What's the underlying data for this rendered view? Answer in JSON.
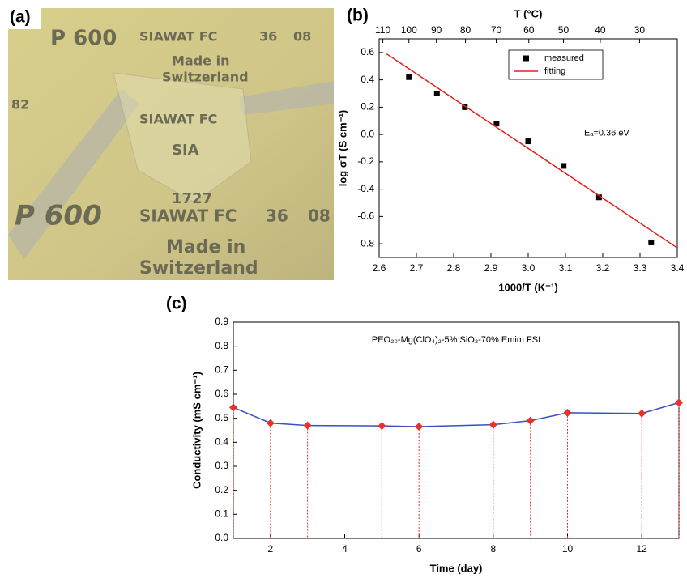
{
  "panels": {
    "a": "(a)",
    "b": "(b)",
    "c": "(c)"
  },
  "photo": {
    "texts": [
      "P 600",
      "SIAWAT FC",
      "36",
      "08",
      "1727",
      "Made in",
      "Switzerland",
      "SIA",
      "82"
    ]
  },
  "chart_data": [
    {
      "type": "scatter",
      "x_label": "1000/T (K⁻¹)",
      "y_label": "log σT (S cm⁻¹)",
      "x2_label": "T (°C)",
      "annotation": "Eₐ=0.36 eV",
      "xlim": [
        2.6,
        3.4
      ],
      "xticks": [
        2.6,
        2.7,
        2.8,
        2.9,
        {
          "value": 3.0,
          "label": "3.0"
        },
        3.1,
        3.2,
        3.3,
        3.4
      ],
      "ylim": [
        -0.9,
        0.7
      ],
      "yticks": [
        -0.8,
        -0.6,
        -0.4,
        -0.2,
        {
          "value": 0,
          "label": "0.0"
        },
        0.2,
        0.4,
        0.6
      ],
      "x2ticks": [
        110,
        100,
        90,
        80,
        70,
        60,
        50,
        40,
        30
      ],
      "legend": "top-right",
      "series": [
        {
          "name": "measured",
          "type": "scatter",
          "color": "#000000",
          "x": [
            2.68,
            2.755,
            2.83,
            2.915,
            3.0,
            3.095,
            3.19,
            3.33
          ],
          "values": [
            0.42,
            0.3,
            0.2,
            0.08,
            -0.05,
            -0.23,
            -0.46,
            -0.79
          ]
        },
        {
          "name": "fitting",
          "type": "line",
          "color": "#e0201b",
          "x": [
            2.62,
            3.4
          ],
          "values": [
            0.59,
            -0.83
          ]
        }
      ]
    },
    {
      "type": "line",
      "x_label": "Time (day)",
      "y_label": "Conductivity (mS cm⁻¹)",
      "annotation": "PEO₂₀-Mg(ClO₄)₂-5% SiO₂-70% Emim FSI",
      "xlim": [
        1,
        13
      ],
      "xticks": [
        2,
        4,
        6,
        8,
        10,
        12
      ],
      "ylim": [
        0,
        0.9
      ],
      "yticks": [
        {
          "value": 0,
          "label": "0.0"
        },
        0.1,
        0.2,
        0.3,
        0.4,
        0.5,
        0.6,
        0.7,
        0.8,
        0.9
      ],
      "drop_lines": true,
      "x": [
        1,
        2,
        3,
        5,
        6,
        8,
        9,
        10,
        12,
        13
      ],
      "series": [
        {
          "color": "#3a4fc0",
          "marker_color": "#e8312a",
          "values": [
            0.545,
            0.48,
            0.47,
            0.468,
            0.465,
            0.473,
            0.49,
            0.523,
            0.52,
            0.565
          ]
        }
      ]
    }
  ]
}
